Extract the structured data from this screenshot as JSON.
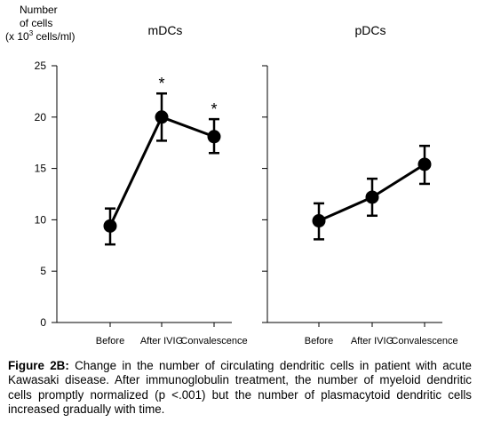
{
  "chart_data": {
    "type": "line",
    "ylabel_lines": [
      "Number",
      "of cells",
      "(x 10",
      "3",
      " cells/ml)"
    ],
    "ylim": [
      0,
      25
    ],
    "yticks": [
      0,
      5,
      10,
      15,
      20,
      25
    ],
    "categories": [
      "Before",
      "After IVIG",
      "Convalescence"
    ],
    "panels": [
      {
        "title": "mDCs",
        "values": [
          9.4,
          20.0,
          18.1
        ],
        "error_low": [
          7.6,
          17.7,
          16.5
        ],
        "error_high": [
          11.1,
          22.3,
          19.8
        ],
        "annotations": [
          "",
          "*",
          "*"
        ]
      },
      {
        "title": "pDCs",
        "values": [
          9.9,
          12.2,
          15.4
        ],
        "error_low": [
          8.1,
          10.4,
          13.5
        ],
        "error_high": [
          11.6,
          14.0,
          17.2
        ],
        "annotations": [
          "",
          "",
          ""
        ]
      }
    ],
    "grid": false,
    "legend": "none"
  },
  "caption": {
    "label": "Figure 2B:",
    "text": " Change in the number of circulating dendritic cells in patient with acute Kawasaki disease. After immunoglobulin treatment, the number of myeloid dendritic cells promptly normalized (p <.001) but the number of plasmacytoid dendritic cells increased gradually with time."
  }
}
